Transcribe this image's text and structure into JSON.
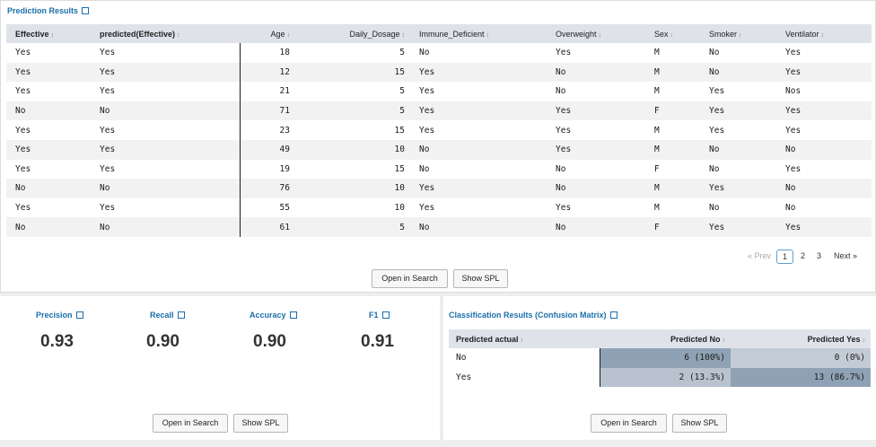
{
  "prediction_results": {
    "title": "Prediction Results",
    "columns": [
      "Effective",
      "predicted(Effective)",
      "Age",
      "Daily_Dosage",
      "Immune_Deficient",
      "Overweight",
      "Sex",
      "Smoker",
      "Ventilator"
    ],
    "rows": [
      [
        "Yes",
        "Yes",
        "18",
        "5",
        "No",
        "Yes",
        "M",
        "No",
        "Yes"
      ],
      [
        "Yes",
        "Yes",
        "12",
        "15",
        "Yes",
        "No",
        "M",
        "No",
        "Yes"
      ],
      [
        "Yes",
        "Yes",
        "21",
        "5",
        "Yes",
        "No",
        "M",
        "Yes",
        "Nos"
      ],
      [
        "No",
        "No",
        "71",
        "5",
        "Yes",
        "Yes",
        "F",
        "Yes",
        "Yes"
      ],
      [
        "Yes",
        "Yes",
        "23",
        "15",
        "Yes",
        "Yes",
        "M",
        "Yes",
        "Yes"
      ],
      [
        "Yes",
        "Yes",
        "49",
        "10",
        "No",
        "Yes",
        "M",
        "No",
        "No"
      ],
      [
        "Yes",
        "Yes",
        "19",
        "15",
        "No",
        "No",
        "F",
        "No",
        "Yes"
      ],
      [
        "No",
        "No",
        "76",
        "10",
        "Yes",
        "No",
        "M",
        "Yes",
        "No"
      ],
      [
        "Yes",
        "Yes",
        "55",
        "10",
        "Yes",
        "Yes",
        "M",
        "No",
        "No"
      ],
      [
        "No",
        "No",
        "61",
        "5",
        "No",
        "No",
        "F",
        "Yes",
        "Yes"
      ]
    ],
    "pagination": {
      "prev": "« Prev",
      "pages": [
        "1",
        "2",
        "3"
      ],
      "current": "1",
      "next": "Next »"
    },
    "open_in_search": "Open in Search",
    "show_spl": "Show SPL"
  },
  "metrics": {
    "items": [
      {
        "label": "Precision",
        "value": "0.93"
      },
      {
        "label": "Recall",
        "value": "0.90"
      },
      {
        "label": "Accuracy",
        "value": "0.90"
      },
      {
        "label": "F1",
        "value": "0.91"
      }
    ],
    "open_in_search": "Open in Search",
    "show_spl": "Show SPL"
  },
  "confusion_matrix": {
    "title": "Classification Results (Confusion Matrix)",
    "columns": [
      "Predicted actual",
      "Predicted No",
      "Predicted Yes"
    ],
    "rows": [
      {
        "label": "No",
        "cells": [
          "6 (100%)",
          "0 (0%)"
        ],
        "shades": [
          "#8fa2b5",
          "#c3ccd6"
        ]
      },
      {
        "label": "Yes",
        "cells": [
          "2 (13.3%)",
          "13 (86.7%)"
        ],
        "shades": [
          "#b8c3cf",
          "#8fa2b5"
        ]
      }
    ],
    "open_in_search": "Open in Search",
    "show_spl": "Show SPL"
  },
  "colors": {
    "title_blue": "#1a6faa",
    "header_bg": "#dfe3e9",
    "cell_dark": "#8fa2b5",
    "cell_light": "#c3ccd6"
  }
}
